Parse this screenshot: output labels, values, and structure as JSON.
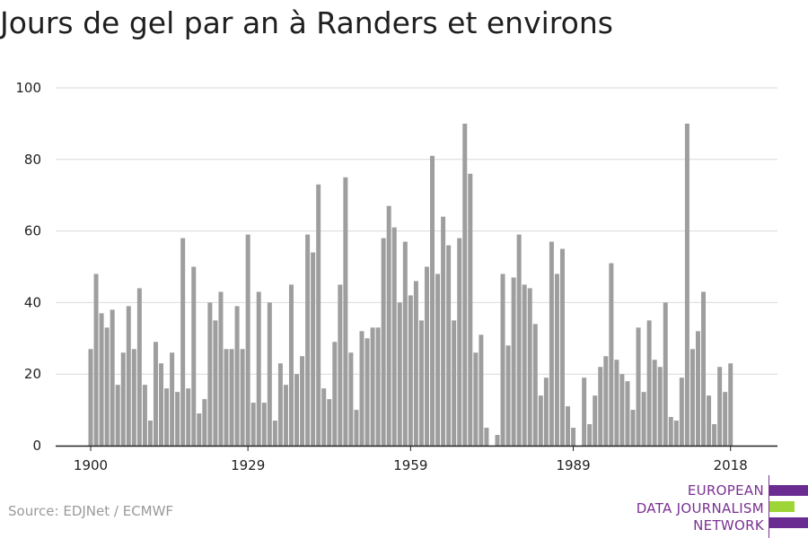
{
  "title": "Jours de gel par an à Randers et environs",
  "source": "Source: EDJNet / ECMWF",
  "logo": {
    "lines": [
      "EUROPEAN",
      "DATA JOURNALISM",
      "NETWORK"
    ],
    "purple": "#6b2c91",
    "green": "#9ed536"
  },
  "colors": {
    "bar": "#9e9e9e",
    "grid": "#d9d9d9",
    "axis": "#222222",
    "text": "#222222"
  },
  "chart_data": {
    "type": "bar",
    "title": "Jours de gel par an à Randers et environs",
    "xlabel": "",
    "ylabel": "",
    "ylim": [
      0,
      100
    ],
    "y_ticks": [
      0,
      20,
      40,
      60,
      80,
      100
    ],
    "x_ticks": [
      1900,
      1929,
      1959,
      1989,
      2018
    ],
    "grid": true,
    "x": [
      1900,
      1901,
      1902,
      1903,
      1904,
      1905,
      1906,
      1907,
      1908,
      1909,
      1910,
      1911,
      1912,
      1913,
      1914,
      1915,
      1916,
      1917,
      1918,
      1919,
      1920,
      1921,
      1922,
      1923,
      1924,
      1925,
      1926,
      1927,
      1928,
      1929,
      1930,
      1931,
      1932,
      1933,
      1934,
      1935,
      1936,
      1937,
      1938,
      1939,
      1940,
      1941,
      1942,
      1943,
      1944,
      1945,
      1946,
      1947,
      1948,
      1949,
      1950,
      1951,
      1952,
      1953,
      1954,
      1955,
      1956,
      1957,
      1958,
      1959,
      1960,
      1961,
      1962,
      1963,
      1964,
      1965,
      1966,
      1967,
      1968,
      1969,
      1970,
      1971,
      1972,
      1973,
      1974,
      1975,
      1976,
      1977,
      1978,
      1979,
      1980,
      1981,
      1982,
      1983,
      1984,
      1985,
      1986,
      1987,
      1988,
      1989,
      1990,
      1991,
      1992,
      1993,
      1994,
      1995,
      1996,
      1997,
      1998,
      1999,
      2000,
      2001,
      2002,
      2003,
      2004,
      2005,
      2006,
      2007,
      2008,
      2009,
      2010,
      2011,
      2012,
      2013,
      2014,
      2015,
      2016,
      2017,
      2018
    ],
    "values": [
      27,
      48,
      37,
      33,
      38,
      17,
      26,
      39,
      27,
      44,
      17,
      7,
      29,
      23,
      16,
      26,
      15,
      58,
      16,
      50,
      9,
      13,
      40,
      35,
      43,
      27,
      27,
      39,
      27,
      59,
      12,
      43,
      12,
      40,
      7,
      23,
      17,
      45,
      20,
      25,
      59,
      54,
      73,
      16,
      13,
      29,
      45,
      75,
      26,
      10,
      32,
      30,
      33,
      33,
      58,
      67,
      61,
      40,
      57,
      42,
      46,
      35,
      50,
      81,
      48,
      64,
      56,
      35,
      58,
      90,
      76,
      26,
      31,
      5,
      0,
      3,
      48,
      28,
      47,
      59,
      45,
      44,
      34,
      14,
      19,
      57,
      48,
      55,
      11,
      5,
      0,
      19,
      6,
      14,
      22,
      25,
      51,
      24,
      20,
      18,
      10,
      33,
      15,
      35,
      24,
      22,
      40,
      8,
      7,
      19,
      90,
      27,
      32,
      43,
      14,
      6,
      22,
      15,
      23
    ]
  }
}
